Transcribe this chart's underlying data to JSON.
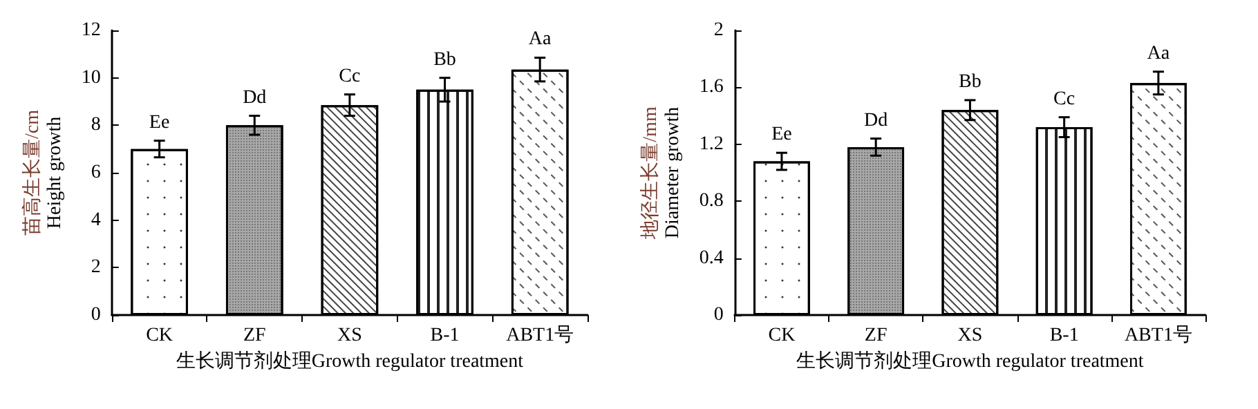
{
  "chart_data": [
    {
      "type": "bar",
      "categories": [
        "CK",
        "ZF",
        "XS",
        "B-1",
        "ABT1号"
      ],
      "values": [
        7.0,
        8.0,
        8.85,
        9.5,
        10.35
      ],
      "errors": [
        0.35,
        0.4,
        0.45,
        0.5,
        0.5
      ],
      "colors": [
        "#ffffff",
        "#a8a8a8",
        "#ffffff",
        "#ffffff",
        "#ffffff"
      ],
      "xlabel": "生长调节剂处理Growth regulator treatment",
      "ylabel": "苗高生长量/cm\nHeight growth",
      "ylim": [
        0,
        12
      ],
      "yticks": [
        0,
        2,
        4,
        6,
        8,
        10,
        12
      ],
      "grid": false,
      "value_labels": [
        "Ee",
        "Dd",
        "Cc",
        "Bb",
        "Aa"
      ]
    },
    {
      "type": "bar",
      "categories": [
        "CK",
        "ZF",
        "XS",
        "B-1",
        "ABT1号"
      ],
      "values": [
        1.08,
        1.18,
        1.44,
        1.32,
        1.63
      ],
      "errors": [
        0.06,
        0.06,
        0.07,
        0.07,
        0.08
      ],
      "colors": [
        "#ffffff",
        "#a8a8a8",
        "#ffffff",
        "#ffffff",
        "#ffffff"
      ],
      "xlabel": "生长调节剂处理Growth regulator treatment",
      "ylabel": "地径生长量/mm\nDiameter growth",
      "ylim": [
        0,
        2
      ],
      "yticks": [
        0,
        0.4,
        0.8,
        1.2,
        1.6,
        2
      ],
      "grid": false,
      "value_labels": [
        "Ee",
        "Dd",
        "Bb",
        "Cc",
        "Aa"
      ]
    }
  ]
}
